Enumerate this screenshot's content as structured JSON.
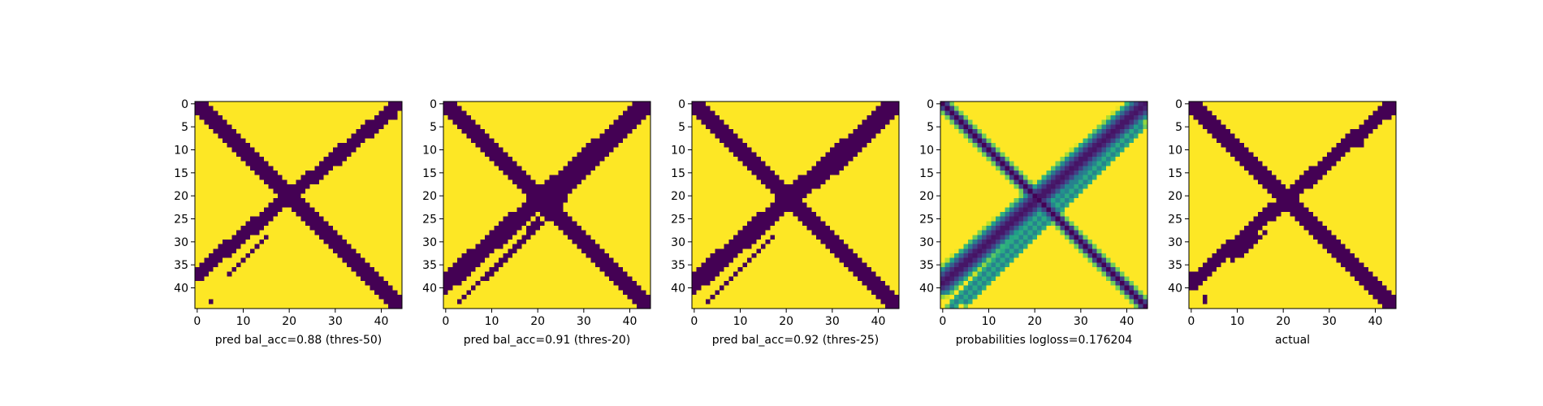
{
  "chart_data": [
    {
      "type": "heatmap",
      "colormap": "viridis",
      "xlabel": "pred bal_acc=0.88 (thres-50)",
      "grid_size": 45,
      "x_ticks": [
        0,
        10,
        20,
        30,
        40
      ],
      "y_ticks": [
        0,
        5,
        10,
        15,
        20,
        25,
        30,
        35,
        40
      ],
      "pattern": {
        "main_diagonal": {
          "start": [
            0,
            0
          ],
          "end": [
            44,
            44
          ],
          "width": 3
        },
        "anti_diagonal": {
          "start": [
            0,
            37
          ],
          "end": [
            44,
            0
          ],
          "width": 3
        },
        "extra_streaks": [
          {
            "from": [
              7,
              37
            ],
            "to": [
              15,
              29
            ],
            "width": 1
          },
          {
            "from": [
              31,
              13
            ],
            "to": [
              37,
              7
            ],
            "width": 1
          }
        ],
        "noise_points": [
          [
            3,
            43
          ],
          [
            43,
            3
          ]
        ]
      }
    },
    {
      "type": "heatmap",
      "colormap": "viridis",
      "xlabel": "pred bal_acc=0.91 (thres-20)",
      "grid_size": 45,
      "x_ticks": [
        0,
        10,
        20,
        30,
        40
      ],
      "y_ticks": [
        0,
        5,
        10,
        15,
        20,
        25,
        30,
        35,
        40
      ],
      "pattern": {
        "main_diagonal": {
          "start": [
            0,
            0
          ],
          "end": [
            44,
            44
          ],
          "width": 4
        },
        "anti_diagonal": {
          "start": [
            0,
            39
          ],
          "end": [
            44,
            0
          ],
          "width": 4
        },
        "extra_streaks": [
          {
            "from": [
              3,
              43
            ],
            "to": [
              26,
              21
            ],
            "width": 1
          },
          {
            "from": [
              18,
              27
            ],
            "to": [
              41,
              5
            ],
            "width": 1
          }
        ],
        "noise_points": []
      }
    },
    {
      "type": "heatmap",
      "colormap": "viridis",
      "xlabel": "pred bal_acc=0.92 (thres-25)",
      "grid_size": 45,
      "x_ticks": [
        0,
        10,
        20,
        30,
        40
      ],
      "y_ticks": [
        0,
        5,
        10,
        15,
        20,
        25,
        30,
        35,
        40
      ],
      "pattern": {
        "main_diagonal": {
          "start": [
            0,
            0
          ],
          "end": [
            44,
            44
          ],
          "width": 4
        },
        "anti_diagonal": {
          "start": [
            0,
            39
          ],
          "end": [
            44,
            0
          ],
          "width": 4
        },
        "extra_streaks": [
          {
            "from": [
              3,
              43
            ],
            "to": [
              17,
              29
            ],
            "width": 1
          },
          {
            "from": [
              27,
              18
            ],
            "to": [
              41,
              5
            ],
            "width": 1
          }
        ],
        "noise_points": []
      }
    },
    {
      "type": "heatmap",
      "colormap": "viridis",
      "xlabel": "probabilities logloss=0.176204",
      "grid_size": 45,
      "x_ticks": [
        0,
        10,
        20,
        30,
        40
      ],
      "y_ticks": [
        0,
        5,
        10,
        15,
        20,
        25,
        30,
        35,
        40
      ],
      "pattern": {
        "continuous": true,
        "main_diagonal": {
          "start": [
            0,
            0
          ],
          "end": [
            44,
            44
          ],
          "width": 2
        },
        "anti_diagonal": {
          "start": [
            0,
            39
          ],
          "end": [
            44,
            0
          ],
          "width": 3
        },
        "parallel_streaks": [
          {
            "from": [
              5,
              43
            ],
            "to": [
              43,
              5
            ],
            "width": 1
          },
          {
            "from": [
              2,
              44
            ],
            "to": [
              44,
              2
            ],
            "width": 1
          }
        ]
      }
    },
    {
      "type": "heatmap",
      "colormap": "viridis",
      "xlabel": "actual",
      "grid_size": 45,
      "x_ticks": [
        0,
        10,
        20,
        30,
        40
      ],
      "y_ticks": [
        0,
        5,
        10,
        15,
        20,
        25,
        30,
        35,
        40
      ],
      "pattern": {
        "main_diagonal": {
          "start": [
            0,
            0
          ],
          "end": [
            44,
            44
          ],
          "width": 3
        },
        "anti_diagonal": {
          "start": [
            0,
            39
          ],
          "end": [
            44,
            0
          ],
          "width": 3
        },
        "extra_streaks": [
          {
            "from": [
              9,
              34
            ],
            "to": [
              16,
              28
            ],
            "width": 1
          },
          {
            "from": [
              26,
              18
            ],
            "to": [
              31,
              13
            ],
            "width": 1
          }
        ],
        "noise_points": [
          [
            37,
            9
          ],
          [
            43,
            2
          ],
          [
            43,
            3
          ],
          [
            42,
            3
          ],
          [
            3,
            43
          ],
          [
            3,
            42
          ]
        ]
      }
    }
  ]
}
